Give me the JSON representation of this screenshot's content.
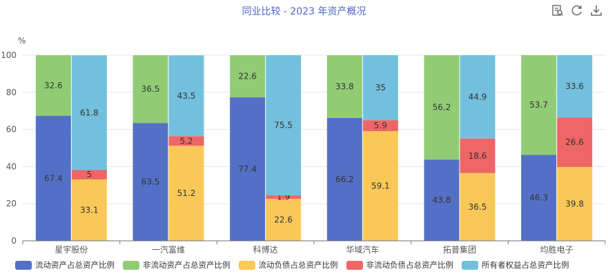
{
  "title": "同业比较 - 2023 年资产概况",
  "toolbar": {
    "icons": [
      "data-view-icon",
      "restore-icon",
      "download-icon"
    ]
  },
  "chart_data": {
    "type": "bar",
    "stacked": true,
    "title": "同业比较 - 2023 年资产概况",
    "ylabel": "%",
    "ylim": [
      0,
      100
    ],
    "yticks": [
      "0",
      "20",
      "40",
      "60",
      "80",
      "100"
    ],
    "grid": true,
    "legend_position": "bottom",
    "categories": [
      "星宇股份",
      "一汽富维",
      "科博达",
      "华域汽车",
      "拓普集团",
      "均胜电子"
    ],
    "series": [
      {
        "name": "流动资产占总资产比例",
        "stack": "asset",
        "color": "#5470c6",
        "values": [
          67.4,
          63.5,
          77.4,
          66.2,
          43.8,
          46.3
        ]
      },
      {
        "name": "非流动资产占总资产比例",
        "stack": "asset",
        "color": "#91cc75",
        "values": [
          32.6,
          36.5,
          22.6,
          33.8,
          56.2,
          53.7
        ]
      },
      {
        "name": "流动负债占总资产比例",
        "stack": "liab",
        "color": "#fac858",
        "values": [
          33.1,
          51.2,
          22.6,
          59.1,
          36.5,
          39.8
        ]
      },
      {
        "name": "非流动负债占总资产比例",
        "stack": "liab",
        "color": "#ee6666",
        "values": [
          5,
          5.2,
          1.9,
          5.9,
          18.6,
          26.6
        ]
      },
      {
        "name": "所有者权益占总资产比例",
        "stack": "liab",
        "color": "#73c0de",
        "values": [
          61.8,
          43.5,
          75.5,
          35,
          44.9,
          33.6
        ]
      }
    ]
  }
}
